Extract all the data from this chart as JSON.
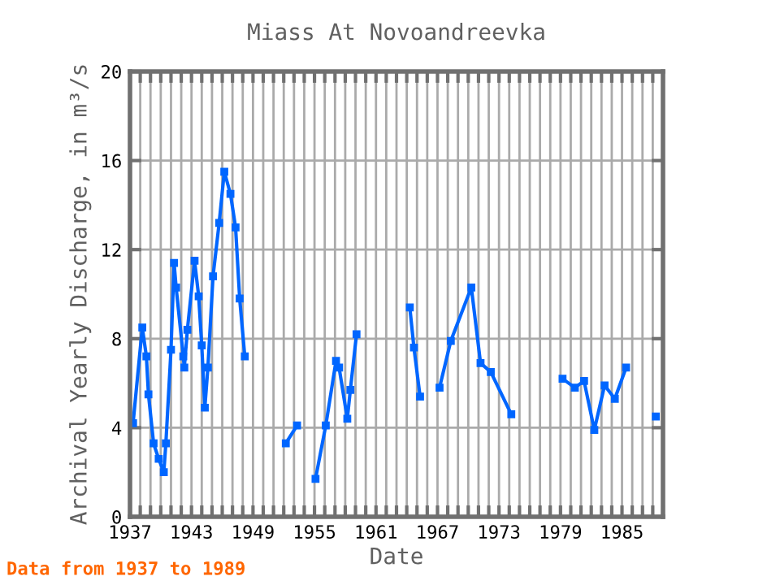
{
  "chart_data": {
    "type": "line",
    "title": "Miass At Novoandreevka",
    "xlabel": "Date",
    "ylabel": "Archival Yearly Discharge, in m³/s",
    "annotations": [
      "Data from 1937 to 1989"
    ],
    "series": [
      {
        "color": "#0066ff",
        "x": [
          1937.3,
          1938.2,
          1938.6,
          1938.8,
          1939.3,
          1939.8,
          1940.3,
          1940.5,
          1941,
          1941.3,
          1941.5,
          1942.2,
          1942.3,
          1942.6,
          1943.3,
          1943.7,
          1944,
          1944.3,
          1944.6,
          1945.1,
          1945.7,
          1946.2,
          1946.8,
          1947.3,
          1947.7,
          1948.2,
          1950,
          1952.2,
          1953.3,
          1954,
          1955.1,
          1956.1,
          1957.1,
          1957.4,
          1958.2,
          1958.5,
          1959.1,
          1962,
          1964.3,
          1964.7,
          1965.3,
          1966,
          1967.2,
          1968.3,
          1970.3,
          1971.2,
          1972.2,
          1974.2,
          1977,
          1979.2,
          1980.4,
          1981.3,
          1982.3,
          1983.3,
          1984.3,
          1985.4,
          1987,
          1988.3
        ],
        "values": [
          4.2,
          8.5,
          7.2,
          5.5,
          3.3,
          2.6,
          2.0,
          3.3,
          7.5,
          11.4,
          10.3,
          7.2,
          6.7,
          8.4,
          11.5,
          9.9,
          7.7,
          4.9,
          6.7,
          10.8,
          13.2,
          15.5,
          14.5,
          13.0,
          9.8,
          7.2,
          null,
          3.3,
          4.1,
          null,
          1.7,
          4.1,
          7.0,
          6.7,
          4.4,
          5.7,
          8.2,
          null,
          9.4,
          7.6,
          5.4,
          null,
          5.8,
          7.9,
          10.3,
          6.9,
          6.5,
          4.6,
          null,
          6.2,
          5.8,
          6.1,
          3.9,
          5.9,
          5.3,
          6.7,
          null,
          4.5
        ]
      }
    ],
    "xlim": [
      1937,
      1989
    ],
    "ylim": [
      0,
      20
    ],
    "xticks": [
      1937,
      {
        "value": 1938,
        "label": null
      },
      {
        "value": 1939,
        "label": null
      },
      {
        "value": 1940,
        "label": null
      },
      {
        "value": 1941,
        "label": null
      },
      {
        "value": 1942,
        "label": null
      },
      1943,
      {
        "value": 1944,
        "label": null
      },
      {
        "value": 1945,
        "label": null
      },
      {
        "value": 1946,
        "label": null
      },
      {
        "value": 1947,
        "label": null
      },
      {
        "value": 1948,
        "label": null
      },
      1949,
      {
        "value": 1950,
        "label": null
      },
      {
        "value": 1951,
        "label": null
      },
      {
        "value": 1952,
        "label": null
      },
      {
        "value": 1953,
        "label": null
      },
      {
        "value": 1954,
        "label": null
      },
      1955,
      {
        "value": 1956,
        "label": null
      },
      {
        "value": 1957,
        "label": null
      },
      {
        "value": 1958,
        "label": null
      },
      {
        "value": 1959,
        "label": null
      },
      {
        "value": 1960,
        "label": null
      },
      1961,
      {
        "value": 1962,
        "label": null
      },
      {
        "value": 1963,
        "label": null
      },
      {
        "value": 1964,
        "label": null
      },
      {
        "value": 1965,
        "label": null
      },
      {
        "value": 1966,
        "label": null
      },
      1967,
      {
        "value": 1968,
        "label": null
      },
      {
        "value": 1969,
        "label": null
      },
      {
        "value": 1970,
        "label": null
      },
      {
        "value": 1971,
        "label": null
      },
      {
        "value": 1972,
        "label": null
      },
      1973,
      {
        "value": 1974,
        "label": null
      },
      {
        "value": 1975,
        "label": null
      },
      {
        "value": 1976,
        "label": null
      },
      {
        "value": 1977,
        "label": null
      },
      {
        "value": 1978,
        "label": null
      },
      1979,
      {
        "value": 1980,
        "label": null
      },
      {
        "value": 1981,
        "label": null
      },
      {
        "value": 1982,
        "label": null
      },
      {
        "value": 1983,
        "label": null
      },
      {
        "value": 1984,
        "label": null
      },
      1985,
      {
        "value": 1986,
        "label": null
      },
      {
        "value": 1987,
        "label": null
      },
      {
        "value": 1988,
        "label": null
      },
      {
        "value": 1989,
        "label": null
      }
    ],
    "yticks": [
      0,
      4,
      8,
      12,
      16,
      20
    ],
    "grid": true,
    "legend": false,
    "marker": "square",
    "line_style": "solid"
  }
}
